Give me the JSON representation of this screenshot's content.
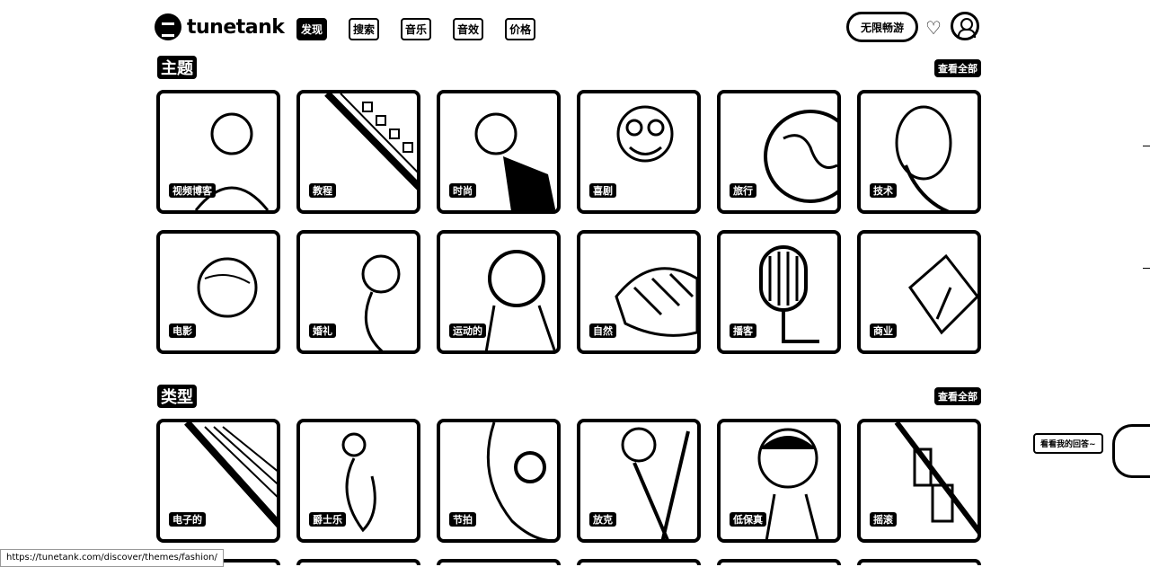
{
  "header": {
    "logo_text": "tunetank",
    "nav": [
      {
        "label": "发现",
        "active": true
      },
      {
        "label": "搜索",
        "active": false
      },
      {
        "label": "音乐",
        "active": false
      },
      {
        "label": "音效",
        "active": false
      },
      {
        "label": "价格",
        "active": false
      }
    ],
    "unlimited_label": "无限畅游",
    "heart_icon": "heart-icon",
    "user_icon": "user-icon"
  },
  "themes": {
    "title": "主题",
    "see_all": "查看全部",
    "items": [
      {
        "label": "视频博客"
      },
      {
        "label": "教程"
      },
      {
        "label": "时尚"
      },
      {
        "label": "喜剧"
      },
      {
        "label": "旅行"
      },
      {
        "label": "技术"
      },
      {
        "label": "电影"
      },
      {
        "label": "婚礼"
      },
      {
        "label": "运动的"
      },
      {
        "label": "自然"
      },
      {
        "label": "播客"
      },
      {
        "label": "商业"
      }
    ]
  },
  "genres": {
    "title": "类型",
    "see_all": "查看全部",
    "items": [
      {
        "label": "电子的"
      },
      {
        "label": "爵士乐"
      },
      {
        "label": "节拍"
      },
      {
        "label": "放克"
      },
      {
        "label": "低保真"
      },
      {
        "label": "摇滚"
      }
    ]
  },
  "feedback": {
    "label": "看看我的回答~"
  },
  "status_url": "https://tunetank.com/discover/themes/fashion/"
}
